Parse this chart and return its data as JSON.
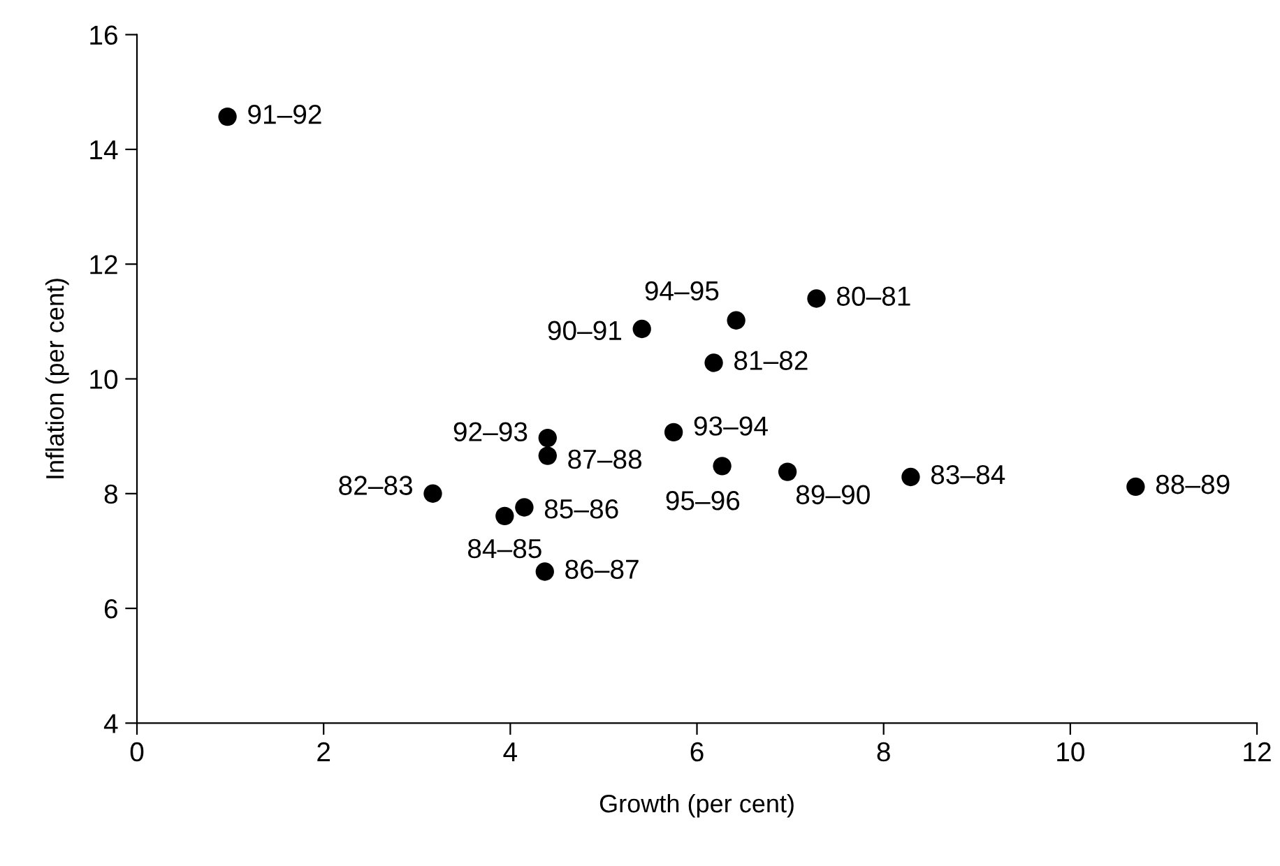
{
  "chart_data": {
    "type": "scatter",
    "xlabel": "Growth (per cent)",
    "ylabel": "Inflation (per cent)",
    "x": [
      7.28,
      6.18,
      3.17,
      8.29,
      3.94,
      4.15,
      4.37,
      4.4,
      10.7,
      6.97,
      5.41,
      0.97,
      4.4,
      5.75,
      6.42,
      6.27
    ],
    "values": [
      11.4,
      10.28,
      8.0,
      8.29,
      7.61,
      7.76,
      6.64,
      8.66,
      8.12,
      8.38,
      10.87,
      14.57,
      8.97,
      9.07,
      11.02,
      8.48
    ],
    "value_labels": [
      "80–81",
      "81–82",
      "82–83",
      "83–84",
      "84–85",
      "85–86",
      "86–87",
      "87–88",
      "88–89",
      "89–90",
      "90–91",
      "91–92",
      "92–93",
      "93–94",
      "94–95",
      "95–96"
    ],
    "color": "#000000",
    "marker": "circle",
    "xlim": [
      0,
      12
    ],
    "xticks": [
      0,
      2,
      4,
      6,
      8,
      10,
      12
    ],
    "ylim": [
      4,
      16
    ],
    "yticks": [
      4,
      6,
      8,
      10,
      12,
      14,
      16
    ],
    "grid": false,
    "legend": false
  }
}
